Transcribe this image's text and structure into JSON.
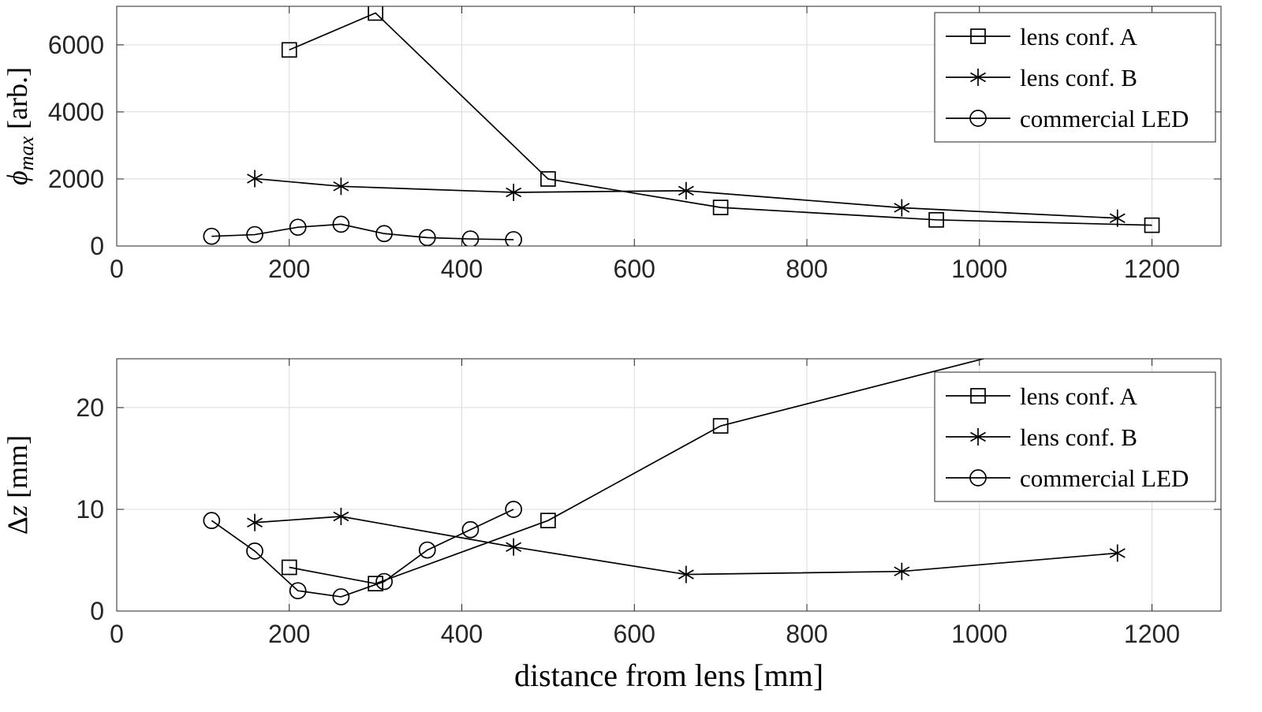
{
  "figure": {
    "background": "#ffffff",
    "colors": {
      "line": "#000000",
      "grid": "#dbdbdb",
      "axis": "#262626",
      "text": "#262626",
      "label": "#000000",
      "legend_bg": "#ffffff"
    }
  },
  "chart_data": [
    {
      "type": "line",
      "title": "",
      "ylabel_parts": [
        {
          "t": "ϕ",
          "i": 1
        },
        {
          "t": "max",
          "i": 1,
          "sub": 1
        },
        {
          "t": " [arb.]"
        }
      ],
      "xlim": [
        0,
        1280
      ],
      "ylim": [
        0,
        7150
      ],
      "xticks": [
        0,
        200,
        400,
        600,
        800,
        1000,
        1200
      ],
      "yticks": [
        0,
        2000,
        4000,
        6000
      ],
      "grid": true,
      "legend": {
        "position": "northeast",
        "entries": [
          "lens conf. A",
          "lens conf. B",
          "commercial LED"
        ]
      },
      "series": [
        {
          "name": "lens conf. A",
          "marker": "square",
          "x": [
            200,
            300,
            500,
            700,
            950,
            1200
          ],
          "y": [
            5850,
            6950,
            2000,
            1150,
            780,
            620
          ]
        },
        {
          "name": "lens conf. B",
          "marker": "asterisk",
          "x": [
            160,
            260,
            460,
            660,
            910,
            1160
          ],
          "y": [
            2010,
            1780,
            1600,
            1650,
            1140,
            830
          ]
        },
        {
          "name": "commercial LED",
          "marker": "circle",
          "x": [
            110,
            160,
            210,
            260,
            310,
            360,
            410,
            460
          ],
          "y": [
            290,
            340,
            560,
            650,
            370,
            250,
            210,
            190
          ]
        }
      ]
    },
    {
      "type": "line",
      "title": "",
      "xlabel": "distance from lens [mm]",
      "ylabel_parts": [
        {
          "t": "Δ"
        },
        {
          "t": "z",
          "i": 1
        },
        {
          "t": " [mm]"
        }
      ],
      "xlim": [
        0,
        1280
      ],
      "ylim": [
        0,
        24.8
      ],
      "xticks": [
        0,
        200,
        400,
        600,
        800,
        1000,
        1200
      ],
      "yticks": [
        0,
        10,
        20
      ],
      "grid": true,
      "legend": {
        "position": "northeast",
        "entries": [
          "lens conf. A",
          "lens conf. B",
          "commercial LED"
        ]
      },
      "series": [
        {
          "name": "lens conf. A",
          "marker": "square",
          "x": [
            200,
            300,
            500,
            700,
            1060
          ],
          "y": [
            4.3,
            2.7,
            8.9,
            18.2,
            26
          ]
        },
        {
          "name": "lens conf. B",
          "marker": "asterisk",
          "x": [
            160,
            260,
            460,
            660,
            910,
            1160
          ],
          "y": [
            8.7,
            9.3,
            6.3,
            3.6,
            3.9,
            5.7
          ]
        },
        {
          "name": "commercial LED",
          "marker": "circle",
          "x": [
            110,
            160,
            210,
            260,
            310,
            360,
            410,
            460
          ],
          "y": [
            8.9,
            5.9,
            2.0,
            1.4,
            2.9,
            6.0,
            8.0,
            10.0
          ]
        }
      ]
    }
  ]
}
